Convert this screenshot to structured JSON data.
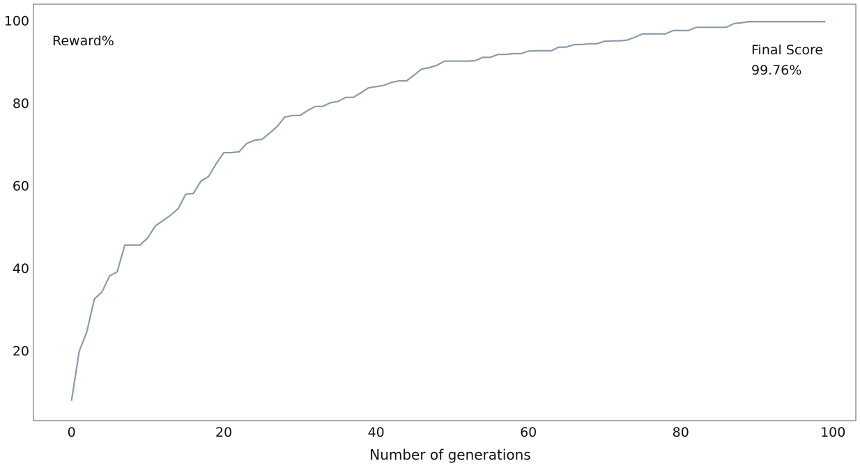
{
  "chart_data": {
    "type": "line",
    "title": "",
    "xlabel": "Number of generations",
    "ylabel": "Reward%",
    "xlim": [
      -5,
      103
    ],
    "ylim": [
      3,
      104
    ],
    "xticks": [
      0,
      20,
      40,
      60,
      80,
      100
    ],
    "yticks": [
      20,
      40,
      60,
      80,
      100
    ],
    "grid": false,
    "legend": "none",
    "line_color": "#8a9bab",
    "frame_color": "#777777",
    "annotations": [
      {
        "line1": "Final Score",
        "line2": "99.76%"
      }
    ],
    "series": [
      {
        "x": [
          0,
          1,
          2,
          3,
          4,
          5,
          6,
          7,
          8,
          9,
          10,
          11,
          12,
          13,
          14,
          15,
          16,
          17,
          18,
          19,
          20,
          21,
          22,
          23,
          24,
          25,
          26,
          27,
          28,
          29,
          30,
          31,
          32,
          33,
          34,
          35,
          36,
          37,
          38,
          39,
          40,
          41,
          42,
          43,
          44,
          45,
          46,
          47,
          48,
          49,
          50,
          51,
          52,
          53,
          54,
          55,
          56,
          57,
          58,
          59,
          60,
          61,
          62,
          63,
          64,
          65,
          66,
          67,
          68,
          69,
          70,
          71,
          72,
          73,
          74,
          75,
          76,
          77,
          78,
          79,
          80,
          81,
          82,
          83,
          84,
          85,
          86,
          87,
          88,
          89,
          90,
          91,
          92,
          93,
          94,
          95,
          96,
          97,
          98,
          99
        ],
        "values": [
          7.8,
          19.8,
          24.5,
          32.5,
          34.2,
          38.1,
          39.1,
          45.6,
          45.6,
          45.6,
          47.3,
          50.2,
          51.5,
          52.8,
          54.4,
          57.9,
          58.1,
          61.1,
          62.2,
          65.3,
          68.0,
          68.0,
          68.2,
          70.2,
          71.0,
          71.2,
          72.7,
          74.3,
          76.6,
          77.0,
          77.0,
          78.2,
          79.2,
          79.2,
          80.1,
          80.4,
          81.4,
          81.4,
          82.5,
          83.7,
          84.0,
          84.3,
          85.0,
          85.4,
          85.4,
          86.8,
          88.3,
          88.6,
          89.2,
          90.2,
          90.2,
          90.2,
          90.2,
          90.3,
          91.1,
          91.1,
          91.8,
          91.8,
          92.0,
          92.0,
          92.6,
          92.7,
          92.7,
          92.7,
          93.6,
          93.6,
          94.2,
          94.2,
          94.4,
          94.4,
          95.0,
          95.1,
          95.1,
          95.3,
          96.0,
          96.8,
          96.8,
          96.8,
          96.8,
          97.6,
          97.6,
          97.6,
          98.4,
          98.4,
          98.4,
          98.4,
          98.4,
          99.3,
          99.5,
          99.76,
          99.76,
          99.76,
          99.76,
          99.76,
          99.76,
          99.76,
          99.76,
          99.76,
          99.76,
          99.76
        ]
      }
    ]
  }
}
